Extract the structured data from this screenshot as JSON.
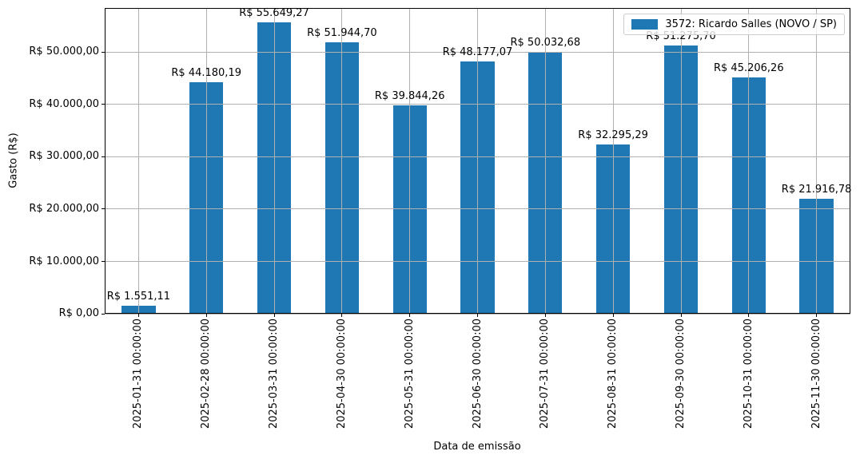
{
  "chart_data": {
    "type": "bar",
    "title": "",
    "xlabel": "Data de emissão",
    "ylabel": "Gasto (R$)",
    "grid": true,
    "legend_position": "upper right",
    "categories": [
      "2025-01-31 00:00:00",
      "2025-02-28 00:00:00",
      "2025-03-31 00:00:00",
      "2025-04-30 00:00:00",
      "2025-05-31 00:00:00",
      "2025-06-30 00:00:00",
      "2025-07-31 00:00:00",
      "2025-08-31 00:00:00",
      "2025-09-30 00:00:00",
      "2025-10-31 00:00:00",
      "2025-11-30 00:00:00"
    ],
    "series": [
      {
        "name": "3572: Ricardo Salles (NOVO / SP)",
        "color": "#1f77b4",
        "values": [
          1551.11,
          44180.19,
          55649.27,
          51944.7,
          39844.26,
          48177.07,
          50032.68,
          32295.29,
          51275.7,
          45206.26,
          21916.78
        ],
        "value_labels": [
          "R$ 1.551,11",
          "R$ 44.180,19",
          "R$ 55.649,27",
          "R$ 51.944,70",
          "R$ 39.844,26",
          "R$ 48.177,07",
          "R$ 50.032,68",
          "R$ 32.295,29",
          "R$ 51.275,70",
          "R$ 45.206,26",
          "R$ 21.916,78"
        ]
      }
    ],
    "yticks": {
      "values": [
        0,
        10000,
        20000,
        30000,
        40000,
        50000
      ],
      "labels": [
        "R$ 0,00",
        "R$ 10.000,00",
        "R$ 20.000,00",
        "R$ 30.000,00",
        "R$ 40.000,00",
        "R$ 50.000,00"
      ]
    },
    "ylim": [
      0,
      58432
    ],
    "bar_width_fraction": 0.5
  },
  "colors": {
    "bar": "#1f77b4",
    "grid": "#b0b0b0",
    "spine": "#000000",
    "text": "#000000",
    "legend_border": "#cccccc",
    "legend_bg": "rgba(255,255,255,0.8)"
  }
}
